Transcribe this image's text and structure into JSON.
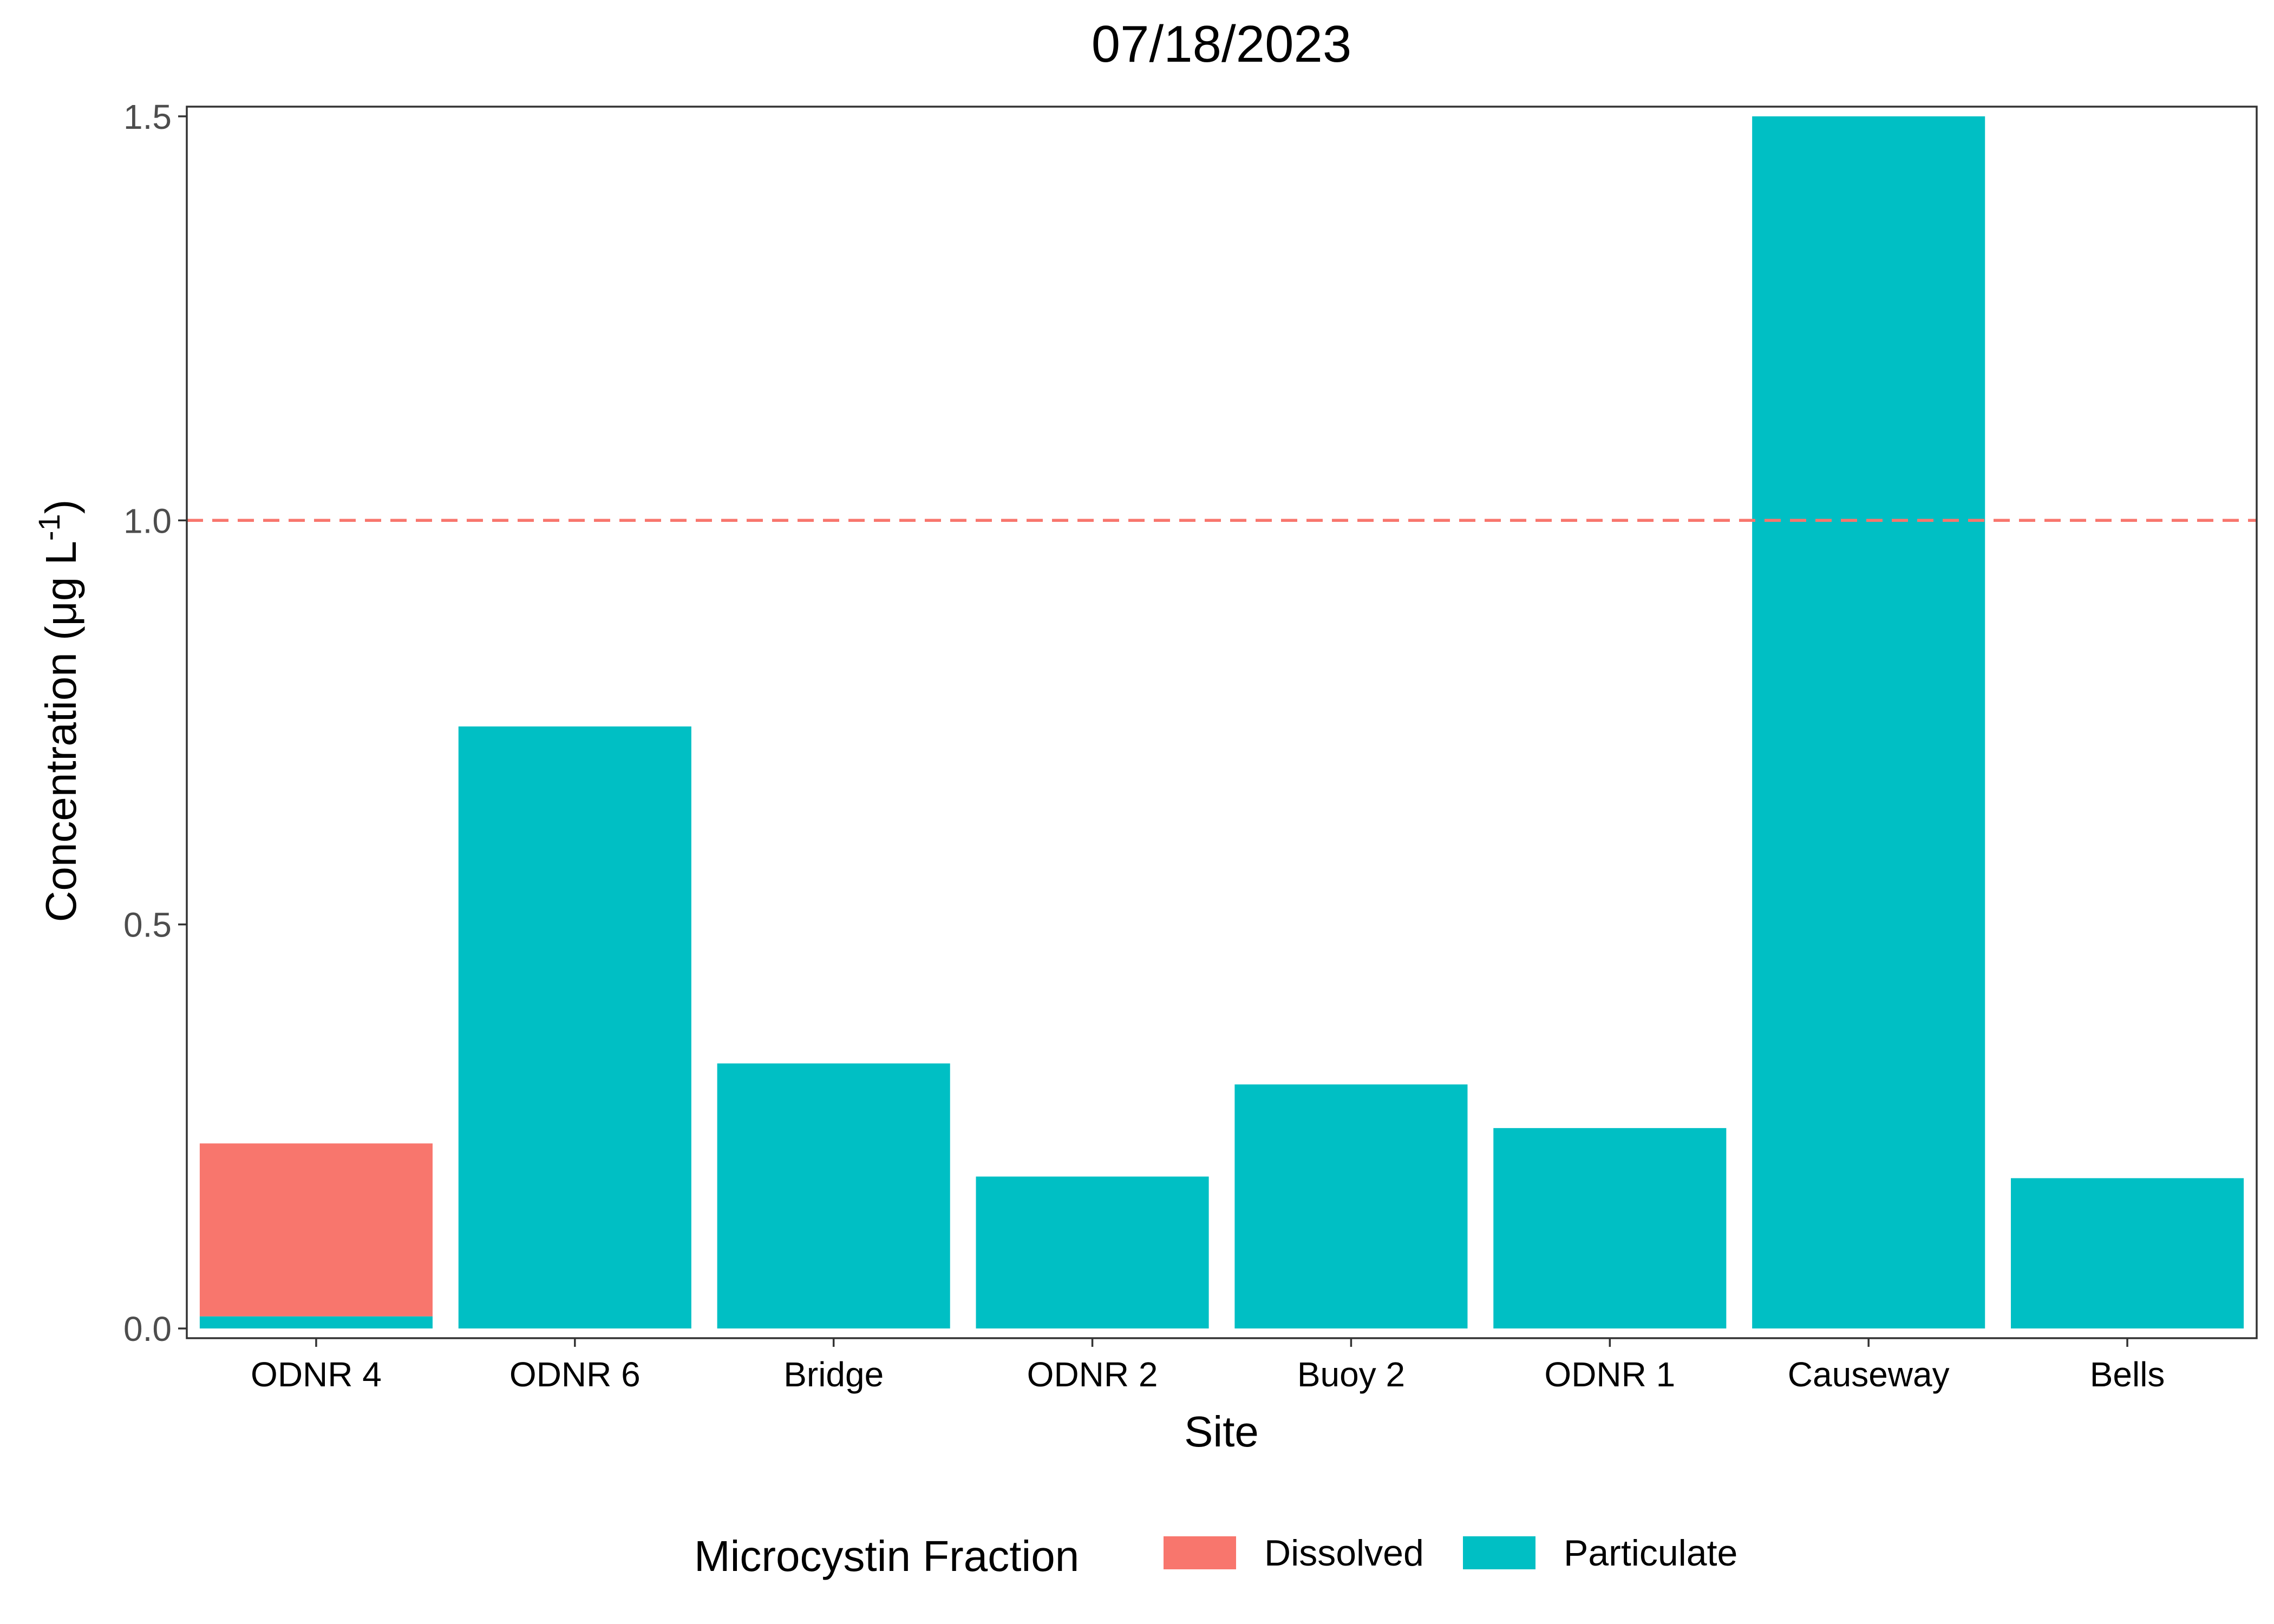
{
  "chart_data": {
    "type": "bar",
    "stacked": true,
    "title": "07/18/2023",
    "xlabel": "Site",
    "ylabel_main": "Concentration (μg L",
    "ylabel_superscript": "-1",
    "ylabel_close": ")",
    "categories": [
      "ODNR 4",
      "ODNR 6",
      "Bridge",
      "ODNR 2",
      "Buoy 2",
      "ODNR 1",
      "Causeway",
      "Bells"
    ],
    "series": [
      {
        "name": "Particulate",
        "color": "#00BFC4",
        "values": [
          0.015,
          0.745,
          0.328,
          0.188,
          0.302,
          0.248,
          1.5,
          0.186
        ]
      },
      {
        "name": "Dissolved",
        "color": "#F8766D",
        "values": [
          0.214,
          0,
          0,
          0,
          0,
          0,
          0,
          0
        ]
      }
    ],
    "ylim": [
      -0.012,
      1.512
    ],
    "yticks": [
      0.0,
      0.5,
      1.0,
      1.5
    ],
    "ytick_labels": [
      "0.0",
      "0.5",
      "1.0",
      "1.5"
    ],
    "reference_line": {
      "y": 1.0,
      "style": "dashed",
      "color": "#F8766D"
    },
    "legend": {
      "title": "Microcystin Fraction",
      "position": "bottom",
      "items": [
        {
          "label": "Dissolved",
          "color": "#F8766D"
        },
        {
          "label": "Particulate",
          "color": "#00BFC4"
        }
      ]
    },
    "grid": false,
    "panel_border": true
  }
}
